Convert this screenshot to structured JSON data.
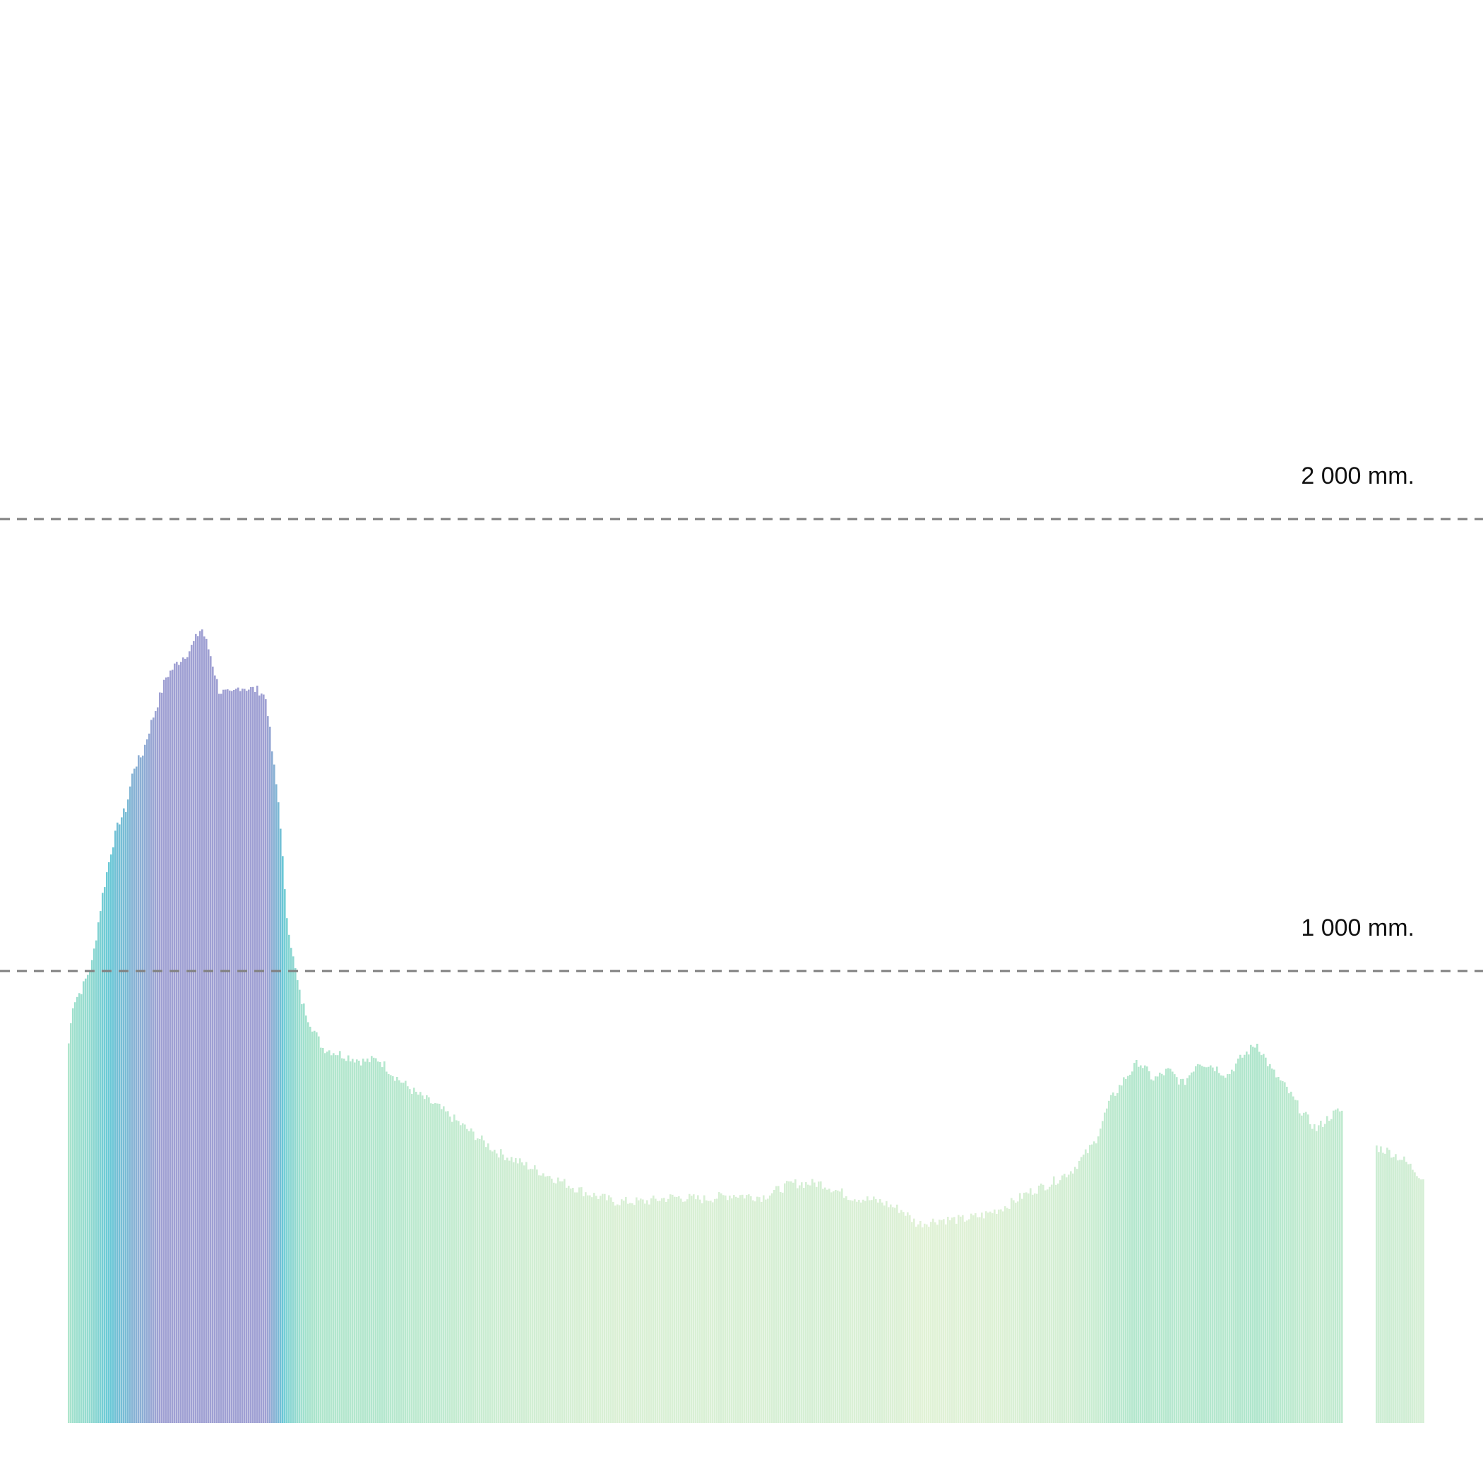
{
  "chart_data": {
    "type": "bar",
    "title": "",
    "xlabel": "",
    "ylabel": "",
    "unit": "mm",
    "ylim": [
      0,
      3150
    ],
    "grid": false,
    "legend": "none",
    "reference_lines": [
      {
        "value": 2000,
        "label": "2 000 mm."
      },
      {
        "value": 1000,
        "label": "1 000 mm."
      }
    ],
    "color_scale": {
      "low": "#e3f2d3",
      "mid": "#a6e3c8",
      "high_mid": "#5bc3d2",
      "high": "#9798cf"
    },
    "series": [
      {
        "anchors": [
          [
            0,
            840
          ],
          [
            0.3,
            930
          ],
          [
            0.9,
            960
          ],
          [
            1.6,
            1020
          ],
          [
            2.3,
            1170
          ],
          [
            2.9,
            1270
          ],
          [
            3.4,
            1330
          ],
          [
            3.9,
            1360
          ],
          [
            4.4,
            1450
          ],
          [
            5,
            1480
          ],
          [
            5.6,
            1550
          ],
          [
            6.1,
            1600
          ],
          [
            6.6,
            1650
          ],
          [
            7.3,
            1680
          ],
          [
            8.2,
            1710
          ],
          [
            9,
            1760
          ],
          [
            9.6,
            1700
          ],
          [
            10.2,
            1620
          ],
          [
            11,
            1610
          ],
          [
            11.6,
            1630
          ],
          [
            12.2,
            1625
          ],
          [
            13,
            1620
          ],
          [
            13.4,
            1600
          ],
          [
            13.8,
            1480
          ],
          [
            14.3,
            1350
          ],
          [
            14.7,
            1140
          ],
          [
            15.2,
            1030
          ],
          [
            15.7,
            940
          ],
          [
            16.3,
            890
          ],
          [
            17.2,
            830
          ],
          [
            18.5,
            815
          ],
          [
            20,
            800
          ],
          [
            21,
            805
          ],
          [
            22,
            770
          ],
          [
            23.5,
            730
          ],
          [
            25,
            700
          ],
          [
            27,
            650
          ],
          [
            29,
            600
          ],
          [
            31,
            570
          ],
          [
            33,
            540
          ],
          [
            35,
            510
          ],
          [
            37,
            490
          ],
          [
            39,
            490
          ],
          [
            41,
            500
          ],
          [
            43,
            495
          ],
          [
            45,
            505
          ],
          [
            47,
            500
          ],
          [
            49,
            530
          ],
          [
            51,
            530
          ],
          [
            53,
            500
          ],
          [
            55,
            490
          ],
          [
            56.5,
            470
          ],
          [
            57.5,
            440
          ],
          [
            59,
            450
          ],
          [
            60.5,
            450
          ],
          [
            62,
            460
          ],
          [
            63.5,
            480
          ],
          [
            65,
            510
          ],
          [
            66.5,
            530
          ],
          [
            68,
            560
          ],
          [
            69.5,
            620
          ],
          [
            70.5,
            710
          ],
          [
            71.5,
            760
          ],
          [
            72.5,
            800
          ],
          [
            73.5,
            760
          ],
          [
            74.5,
            780
          ],
          [
            75.5,
            750
          ],
          [
            76.5,
            800
          ],
          [
            77.5,
            790
          ],
          [
            78.5,
            770
          ],
          [
            79.5,
            810
          ],
          [
            80.5,
            840
          ],
          [
            81.5,
            780
          ],
          [
            82.5,
            740
          ],
          [
            83.5,
            690
          ],
          [
            84.5,
            650
          ],
          [
            85.5,
            680
          ],
          [
            86,
            690
          ]
        ],
        "gaps": [
          [
            86.3,
            88.6
          ]
        ],
        "x_range": [
          0,
          91.8
        ],
        "notes_scale": "anchors are [x_index, rainfall_mm]"
      }
    ],
    "extra_segment": [
      [
        88.6,
        610
      ],
      [
        89.5,
        600
      ],
      [
        90.5,
        580
      ],
      [
        91.8,
        540
      ]
    ]
  }
}
